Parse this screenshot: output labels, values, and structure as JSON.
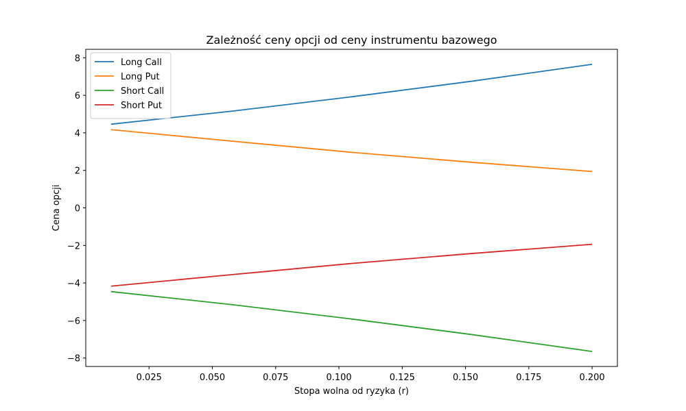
{
  "chart_data": {
    "type": "line",
    "title": "Zależność ceny opcji od ceny instrumentu bazowego",
    "xlabel": "Stopa wolna od ryzyka (r)",
    "ylabel": "Cena opcji",
    "xlim": [
      0.0,
      0.21
    ],
    "ylim": [
      -8.45,
      8.45
    ],
    "xticks": [
      0.025,
      0.05,
      0.075,
      0.1,
      0.125,
      0.15,
      0.175,
      0.2
    ],
    "xtick_labels": [
      "0.025",
      "0.050",
      "0.075",
      "0.100",
      "0.125",
      "0.150",
      "0.175",
      "0.200"
    ],
    "yticks": [
      8,
      6,
      4,
      2,
      0,
      -2,
      -4,
      -6,
      -8
    ],
    "ytick_labels": [
      "8",
      "6",
      "4",
      "2",
      "0",
      "−2",
      "−4",
      "−6",
      "−8"
    ],
    "grid": false,
    "legend_position": "top-left",
    "x": [
      0.01,
      0.0575,
      0.105,
      0.1525,
      0.2
    ],
    "series": [
      {
        "name": "Long Call",
        "color": "#1f77b4",
        "values": [
          4.46,
          5.15,
          5.92,
          6.75,
          7.65
        ]
      },
      {
        "name": "Long Put",
        "color": "#ff7f0e",
        "values": [
          4.17,
          3.56,
          2.96,
          2.43,
          1.94
        ]
      },
      {
        "name": "Short Call",
        "color": "#2ca02c",
        "values": [
          -4.46,
          -5.15,
          -5.92,
          -6.75,
          -7.65
        ]
      },
      {
        "name": "Short Put",
        "color": "#d62728",
        "values": [
          -4.17,
          -3.56,
          -2.96,
          -2.43,
          -1.94
        ]
      }
    ]
  }
}
